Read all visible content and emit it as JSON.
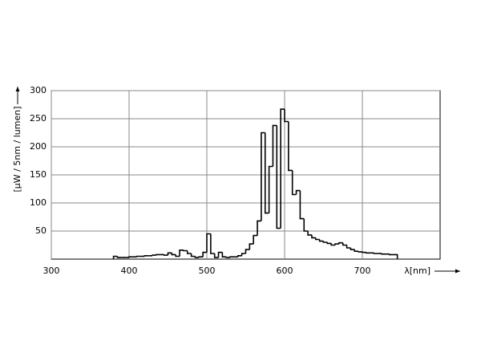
{
  "chart_data": {
    "type": "histogram",
    "xlabel": "λ[nm]",
    "ylabel": "[µW / 5nm / lumen]",
    "bins": [
      380,
      385,
      390,
      395,
      400,
      405,
      410,
      415,
      420,
      425,
      430,
      435,
      440,
      445,
      450,
      455,
      460,
      465,
      470,
      475,
      480,
      485,
      490,
      495,
      500,
      505,
      510,
      515,
      520,
      525,
      530,
      535,
      540,
      545,
      550,
      555,
      560,
      565,
      570,
      575,
      580,
      585,
      590,
      595,
      600,
      605,
      610,
      615,
      620,
      625,
      630,
      635,
      640,
      645,
      650,
      655,
      660,
      665,
      670,
      675,
      680,
      685,
      690,
      695,
      700,
      705,
      710,
      715,
      720,
      725,
      730,
      735,
      740,
      745
    ],
    "counts": [
      5,
      3,
      3,
      3,
      4,
      4,
      5,
      5,
      6,
      6,
      7,
      8,
      8,
      7,
      11,
      8,
      5,
      16,
      15,
      10,
      5,
      3,
      4,
      12,
      45,
      10,
      3,
      12,
      4,
      3,
      4,
      4,
      6,
      10,
      17,
      27,
      42,
      68,
      225,
      82,
      165,
      238,
      55,
      267,
      245,
      158,
      115,
      122,
      72,
      50,
      43,
      38,
      35,
      32,
      30,
      28,
      25,
      27,
      29,
      25,
      20,
      17,
      14,
      13,
      12,
      11,
      11,
      10,
      10,
      9,
      9,
      8,
      8
    ],
    "color": "#000000",
    "xlim": [
      300,
      800
    ],
    "xticks": [
      300,
      400,
      500,
      600,
      700
    ],
    "ylim": [
      0,
      300
    ],
    "yticks": [
      50,
      100,
      150,
      200,
      250,
      300
    ],
    "grid": true
  }
}
